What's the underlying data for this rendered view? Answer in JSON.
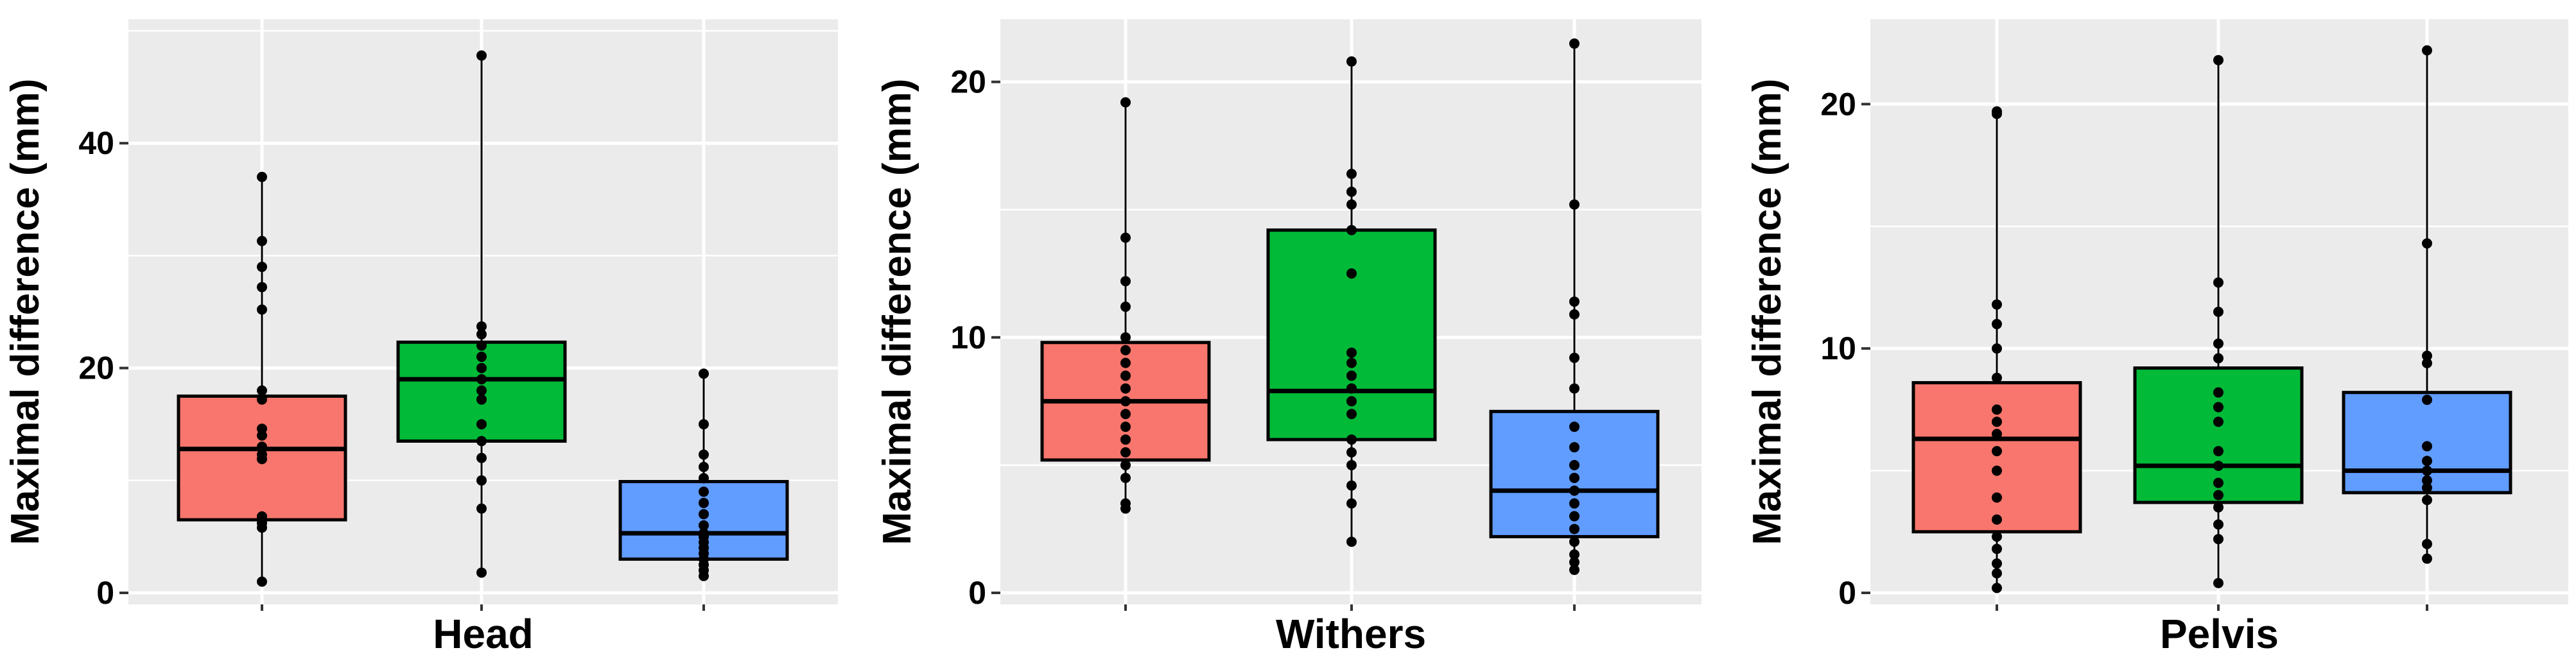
{
  "chart_data": [
    {
      "type": "box",
      "xlabel": "Head",
      "ylabel": "Maximal difference (mm)",
      "ylim": [
        0,
        50
      ],
      "yticks": [
        "0",
        "20",
        "40"
      ],
      "grid": true,
      "series": [
        {
          "color": "#F8766D",
          "box": {
            "q1": 6.5,
            "median": 12.8,
            "q3": 17.5,
            "whisker_low": 1.0,
            "whisker_high": 37.0
          },
          "points": [
            1.0,
            5.8,
            6.2,
            6.8,
            11.9,
            12.3,
            13.0,
            14.0,
            14.6,
            17.2,
            18.0,
            25.2,
            27.2,
            29.0,
            31.3,
            37.0
          ]
        },
        {
          "color": "#00BA38",
          "box": {
            "q1": 13.5,
            "median": 19.0,
            "q3": 22.3,
            "whisker_low": 1.8,
            "whisker_high": 47.8
          },
          "points": [
            1.8,
            7.5,
            10.0,
            12.0,
            13.5,
            15.0,
            17.2,
            18.0,
            19.0,
            20.0,
            21.0,
            22.0,
            23.0,
            23.7,
            47.8
          ]
        },
        {
          "color": "#619CFF",
          "box": {
            "q1": 3.0,
            "median": 5.3,
            "q3": 9.9,
            "whisker_low": 1.5,
            "whisker_high": 19.5
          },
          "points": [
            1.5,
            2.0,
            2.5,
            3.0,
            3.5,
            4.0,
            4.5,
            5.0,
            5.3,
            6.0,
            7.0,
            8.0,
            9.0,
            10.2,
            11.2,
            12.3,
            15.0,
            19.5
          ]
        }
      ]
    },
    {
      "type": "box",
      "xlabel": "Withers",
      "ylabel": "Maximal difference (mm)",
      "ylim": [
        0,
        22
      ],
      "yticks": [
        "0",
        "10",
        "20"
      ],
      "grid": true,
      "series": [
        {
          "color": "#F8766D",
          "box": {
            "q1": 5.2,
            "median": 7.5,
            "q3": 9.8,
            "whisker_low": 3.3,
            "whisker_high": 19.2
          },
          "points": [
            3.3,
            3.5,
            4.5,
            5.0,
            5.5,
            6.0,
            6.5,
            7.0,
            7.5,
            8.0,
            8.5,
            9.0,
            9.5,
            10.0,
            11.2,
            12.2,
            13.9,
            19.2
          ]
        },
        {
          "color": "#00BA38",
          "box": {
            "q1": 6.0,
            "median": 7.9,
            "q3": 14.2,
            "whisker_low": 2.0,
            "whisker_high": 20.8
          },
          "points": [
            2.0,
            3.5,
            4.2,
            5.0,
            5.5,
            6.0,
            7.0,
            7.5,
            8.0,
            8.5,
            9.0,
            9.4,
            12.5,
            14.2,
            15.2,
            15.7,
            16.4,
            20.8
          ]
        },
        {
          "color": "#619CFF",
          "box": {
            "q1": 2.2,
            "median": 4.0,
            "q3": 7.1,
            "whisker_low": 0.9,
            "whisker_high": 21.5
          },
          "points": [
            0.9,
            1.2,
            1.5,
            2.0,
            2.5,
            3.0,
            3.5,
            4.0,
            4.5,
            5.0,
            5.7,
            6.5,
            8.0,
            9.2,
            10.9,
            11.4,
            15.2,
            21.5
          ]
        }
      ]
    },
    {
      "type": "box",
      "xlabel": "Pelvis",
      "ylabel": "Maximal difference (mm)",
      "ylim": [
        0,
        23
      ],
      "yticks": [
        "0",
        "10",
        "20"
      ],
      "grid": true,
      "series": [
        {
          "color": "#F8766D",
          "box": {
            "q1": 2.5,
            "median": 6.3,
            "q3": 8.6,
            "whisker_low": 0.2,
            "whisker_high": 19.7
          },
          "points": [
            0.2,
            0.8,
            1.2,
            1.8,
            2.3,
            3.0,
            3.9,
            5.0,
            5.8,
            6.5,
            7.0,
            7.5,
            8.8,
            10.0,
            11.0,
            11.8,
            19.6,
            19.7
          ]
        },
        {
          "color": "#00BA38",
          "box": {
            "q1": 3.7,
            "median": 5.2,
            "q3": 9.2,
            "whisker_low": 0.4,
            "whisker_high": 21.8
          },
          "points": [
            0.4,
            2.2,
            2.8,
            3.5,
            4.0,
            4.5,
            5.2,
            5.8,
            7.0,
            7.6,
            8.2,
            9.6,
            10.2,
            11.5,
            12.7,
            21.8
          ]
        },
        {
          "color": "#619CFF",
          "box": {
            "q1": 4.1,
            "median": 5.0,
            "q3": 8.2,
            "whisker_low": 1.4,
            "whisker_high": 22.2
          },
          "points": [
            1.4,
            2.0,
            3.8,
            4.3,
            4.6,
            5.0,
            5.4,
            6.0,
            7.9,
            9.4,
            9.7,
            14.3,
            22.2
          ]
        }
      ]
    }
  ]
}
